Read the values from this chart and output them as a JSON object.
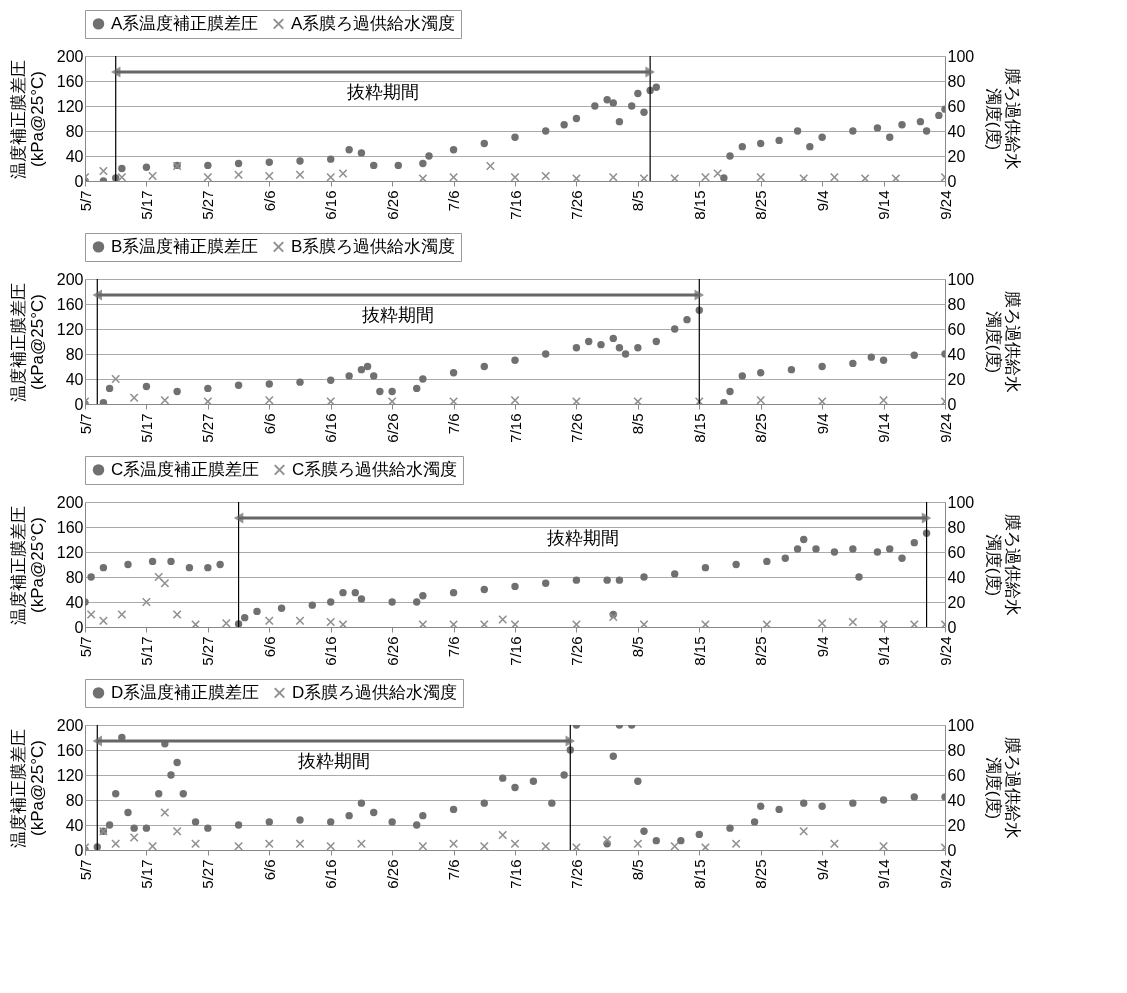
{
  "chart_data": [
    {
      "type": "scatter",
      "ylabel": "温度補正膜差圧\n(kPa@25°C)",
      "y2label": "膜ろ過供給水濁度(度)",
      "xlim": [
        "--05-07",
        "--09-24"
      ],
      "xticks": [
        {
          "value": "--05-07",
          "label": "5/7"
        },
        {
          "value": "--05-17",
          "label": "5/17"
        },
        {
          "value": "--05-27",
          "label": "5/27"
        },
        {
          "value": "--06-06",
          "label": "6/6"
        },
        {
          "value": "--06-16",
          "label": "6/16"
        },
        {
          "value": "--06-26",
          "label": "6/26"
        },
        {
          "value": "--07-06",
          "label": "7/6"
        },
        {
          "value": "--07-16",
          "label": "7/16"
        },
        {
          "value": "--07-26",
          "label": "7/26"
        },
        {
          "value": "--08-05",
          "label": "8/5"
        },
        {
          "value": "--08-15",
          "label": "8/15"
        },
        {
          "value": "--08-25",
          "label": "8/25"
        },
        {
          "value": "--09-04",
          "label": "9/4"
        },
        {
          "value": "--09-14",
          "label": "9/14"
        },
        {
          "value": "--09-24",
          "label": "9/24"
        }
      ],
      "ylim": [
        0,
        200
      ],
      "yticks": [
        0,
        40,
        80,
        120,
        160,
        200
      ],
      "y2lim": [
        0,
        100
      ],
      "y2ticks": [
        0,
        20,
        40,
        60,
        80,
        100
      ],
      "grid": "y",
      "legend": "top",
      "ref_lines": [
        {
          "axis": "x",
          "value": "--05-12",
          "color": "#000000"
        },
        {
          "axis": "x",
          "value": "--08-07",
          "color": "#000000"
        }
      ],
      "annotations": [
        "抜粋期間"
      ],
      "series": [
        {
          "name": "A系温度補正膜差圧",
          "color": "#707070",
          "marker": "circle",
          "x": [
            "--05-07",
            "--05-10",
            "--05-12",
            "--05-13",
            "--05-17",
            "--05-22",
            "--05-27",
            "--06-01",
            "--06-06",
            "--06-11",
            "--06-16",
            "--06-19",
            "--06-21",
            "--06-23",
            "--06-27",
            "--07-01",
            "--07-02",
            "--07-06",
            "--07-11",
            "--07-16",
            "--07-21",
            "--07-24",
            "--07-26",
            "--07-29",
            "--07-31",
            "--08-01",
            "--08-02",
            "--08-04",
            "--08-05",
            "--08-06",
            "--08-07",
            "--08-08",
            "--08-19",
            "--08-20",
            "--08-22",
            "--08-25",
            "--08-28",
            "--08-31",
            "--09-02",
            "--09-04",
            "--09-09",
            "--09-13",
            "--09-15",
            "--09-17",
            "--09-20",
            "--09-21",
            "--09-23",
            "--09-24"
          ],
          "values": [
            0,
            0,
            5,
            20,
            22,
            25,
            25,
            28,
            30,
            32,
            35,
            50,
            45,
            25,
            25,
            28,
            40,
            50,
            60,
            70,
            80,
            90,
            100,
            120,
            130,
            125,
            95,
            120,
            140,
            110,
            145,
            150,
            5,
            40,
            55,
            60,
            65,
            80,
            55,
            70,
            80,
            85,
            70,
            90,
            95,
            80,
            105,
            115
          ]
        },
        {
          "name": "A系膜ろ過供給水濁度",
          "color": "#909090",
          "marker": "cross",
          "axis": "y2",
          "x": [
            "--05-07",
            "--05-10",
            "--05-13",
            "--05-18",
            "--05-22",
            "--05-27",
            "--06-01",
            "--06-06",
            "--06-11",
            "--06-16",
            "--06-18",
            "--07-01",
            "--07-06",
            "--07-12",
            "--07-16",
            "--07-21",
            "--07-26",
            "--08-01",
            "--08-06",
            "--08-11",
            "--08-16",
            "--08-18",
            "--08-25",
            "--09-01",
            "--09-06",
            "--09-11",
            "--09-16",
            "--09-24"
          ],
          "values": [
            3,
            8,
            3,
            4,
            12,
            3,
            5,
            4,
            5,
            3,
            6,
            2,
            3,
            12,
            3,
            4,
            2,
            3,
            2,
            2,
            3,
            6,
            3,
            2,
            3,
            2,
            2,
            3
          ]
        }
      ]
    },
    {
      "type": "scatter",
      "ylabel": "温度補正膜差圧\n(kPa@25°C)",
      "y2label": "膜ろ過供給水濁度(度)",
      "xlim": [
        "--05-07",
        "--09-24"
      ],
      "xticks": [
        {
          "value": "--05-07",
          "label": "5/7"
        },
        {
          "value": "--05-17",
          "label": "5/17"
        },
        {
          "value": "--05-27",
          "label": "5/27"
        },
        {
          "value": "--06-06",
          "label": "6/6"
        },
        {
          "value": "--06-16",
          "label": "6/16"
        },
        {
          "value": "--06-26",
          "label": "6/26"
        },
        {
          "value": "--07-06",
          "label": "7/6"
        },
        {
          "value": "--07-16",
          "label": "7/16"
        },
        {
          "value": "--07-26",
          "label": "7/26"
        },
        {
          "value": "--08-05",
          "label": "8/5"
        },
        {
          "value": "--08-15",
          "label": "8/15"
        },
        {
          "value": "--08-25",
          "label": "8/25"
        },
        {
          "value": "--09-04",
          "label": "9/4"
        },
        {
          "value": "--09-14",
          "label": "9/14"
        },
        {
          "value": "--09-24",
          "label": "9/24"
        }
      ],
      "ylim": [
        0,
        200
      ],
      "yticks": [
        0,
        40,
        80,
        120,
        160,
        200
      ],
      "y2lim": [
        0,
        100
      ],
      "y2ticks": [
        0,
        20,
        40,
        60,
        80,
        100
      ],
      "grid": "y",
      "legend": "top",
      "ref_lines": [
        {
          "axis": "x",
          "value": "--05-09",
          "color": "#000000"
        },
        {
          "axis": "x",
          "value": "--08-15",
          "color": "#000000"
        }
      ],
      "annotations": [
        "抜粋期間"
      ],
      "series": [
        {
          "name": "B系温度補正膜差圧",
          "color": "#707070",
          "marker": "circle",
          "x": [
            "--05-07",
            "--05-10",
            "--05-11",
            "--05-17",
            "--05-22",
            "--05-27",
            "--06-01",
            "--06-06",
            "--06-11",
            "--06-16",
            "--06-19",
            "--06-21",
            "--06-22",
            "--06-23",
            "--06-24",
            "--06-26",
            "--06-30",
            "--07-01",
            "--07-06",
            "--07-11",
            "--07-16",
            "--07-21",
            "--07-26",
            "--07-28",
            "--07-30",
            "--08-01",
            "--08-02",
            "--08-03",
            "--08-05",
            "--08-08",
            "--08-11",
            "--08-13",
            "--08-15",
            "--08-19",
            "--08-20",
            "--08-22",
            "--08-25",
            "--08-30",
            "--09-04",
            "--09-09",
            "--09-12",
            "--09-14",
            "--09-19",
            "--09-24"
          ],
          "values": [
            0,
            2,
            25,
            28,
            20,
            25,
            30,
            32,
            35,
            38,
            45,
            55,
            60,
            45,
            20,
            20,
            25,
            40,
            50,
            60,
            70,
            80,
            90,
            100,
            95,
            105,
            90,
            80,
            90,
            100,
            120,
            135,
            150,
            2,
            20,
            45,
            50,
            55,
            60,
            65,
            75,
            70,
            78,
            80
          ]
        },
        {
          "name": "B系膜ろ過供給水濁度",
          "color": "#909090",
          "marker": "cross",
          "axis": "y2",
          "x": [
            "--05-07",
            "--05-12",
            "--05-15",
            "--05-20",
            "--05-27",
            "--06-06",
            "--06-16",
            "--06-26",
            "--07-06",
            "--07-16",
            "--07-26",
            "--08-05",
            "--08-15",
            "--08-25",
            "--09-04",
            "--09-14",
            "--09-24"
          ],
          "values": [
            2,
            20,
            5,
            3,
            2,
            3,
            2,
            2,
            2,
            3,
            2,
            2,
            2,
            3,
            2,
            3,
            2
          ]
        }
      ]
    },
    {
      "type": "scatter",
      "ylabel": "温度補正膜差圧\n(kPa@25°C)",
      "y2label": "膜ろ過供給水濁度(度)",
      "xlim": [
        "--05-07",
        "--09-24"
      ],
      "xticks": [
        {
          "value": "--05-07",
          "label": "5/7"
        },
        {
          "value": "--05-17",
          "label": "5/17"
        },
        {
          "value": "--05-27",
          "label": "5/27"
        },
        {
          "value": "--06-06",
          "label": "6/6"
        },
        {
          "value": "--06-16",
          "label": "6/16"
        },
        {
          "value": "--06-26",
          "label": "6/26"
        },
        {
          "value": "--07-06",
          "label": "7/6"
        },
        {
          "value": "--07-16",
          "label": "7/16"
        },
        {
          "value": "--07-26",
          "label": "7/26"
        },
        {
          "value": "--08-05",
          "label": "8/5"
        },
        {
          "value": "--08-15",
          "label": "8/15"
        },
        {
          "value": "--08-25",
          "label": "8/25"
        },
        {
          "value": "--09-04",
          "label": "9/4"
        },
        {
          "value": "--09-14",
          "label": "9/14"
        },
        {
          "value": "--09-24",
          "label": "9/24"
        }
      ],
      "ylim": [
        0,
        200
      ],
      "yticks": [
        0,
        40,
        80,
        120,
        160,
        200
      ],
      "y2lim": [
        0,
        100
      ],
      "y2ticks": [
        0,
        20,
        40,
        60,
        80,
        100
      ],
      "grid": "y",
      "legend": "top",
      "ref_lines": [
        {
          "axis": "x",
          "value": "--06-01",
          "color": "#000000"
        },
        {
          "axis": "x",
          "value": "--09-21",
          "color": "#000000"
        }
      ],
      "annotations": [
        "抜粋期間"
      ],
      "series": [
        {
          "name": "C系温度補正膜差圧",
          "color": "#707070",
          "marker": "circle",
          "x": [
            "--05-07",
            "--05-08",
            "--05-10",
            "--05-14",
            "--05-18",
            "--05-21",
            "--05-24",
            "--05-27",
            "--05-29",
            "--06-01",
            "--06-02",
            "--06-04",
            "--06-08",
            "--06-13",
            "--06-16",
            "--06-18",
            "--06-20",
            "--06-21",
            "--06-26",
            "--06-30",
            "--07-01",
            "--07-06",
            "--07-11",
            "--07-16",
            "--07-21",
            "--07-26",
            "--07-31",
            "--08-01",
            "--08-02",
            "--08-06",
            "--08-11",
            "--08-16",
            "--08-21",
            "--08-26",
            "--08-29",
            "--08-31",
            "--09-01",
            "--09-03",
            "--09-06",
            "--09-09",
            "--09-10",
            "--09-13",
            "--09-15",
            "--09-17",
            "--09-19",
            "--09-21"
          ],
          "values": [
            40,
            80,
            95,
            100,
            105,
            105,
            95,
            95,
            100,
            5,
            15,
            25,
            30,
            35,
            40,
            55,
            55,
            45,
            40,
            40,
            50,
            55,
            60,
            65,
            70,
            75,
            75,
            20,
            75,
            80,
            85,
            95,
            100,
            105,
            110,
            125,
            140,
            125,
            120,
            125,
            80,
            120,
            125,
            110,
            135,
            150
          ]
        },
        {
          "name": "C系膜ろ過供給水濁度",
          "color": "#909090",
          "marker": "cross",
          "axis": "y2",
          "x": [
            "--05-08",
            "--05-10",
            "--05-13",
            "--05-17",
            "--05-19",
            "--05-20",
            "--05-22",
            "--05-25",
            "--05-30",
            "--06-06",
            "--06-11",
            "--06-16",
            "--06-18",
            "--07-01",
            "--07-06",
            "--07-11",
            "--07-14",
            "--07-16",
            "--07-26",
            "--08-01",
            "--08-06",
            "--08-16",
            "--08-26",
            "--09-04",
            "--09-09",
            "--09-14",
            "--09-19",
            "--09-24"
          ],
          "values": [
            10,
            5,
            10,
            20,
            40,
            35,
            10,
            2,
            3,
            5,
            5,
            4,
            2,
            2,
            2,
            2,
            6,
            2,
            2,
            8,
            2,
            2,
            2,
            3,
            4,
            2,
            2,
            2
          ]
        }
      ]
    },
    {
      "type": "scatter",
      "ylabel": "温度補正膜差圧\n(kPa@25°C)",
      "y2label": "膜ろ過供給水濁度(度)",
      "xlim": [
        "--05-07",
        "--09-24"
      ],
      "xticks": [
        {
          "value": "--05-07",
          "label": "5/7"
        },
        {
          "value": "--05-17",
          "label": "5/17"
        },
        {
          "value": "--05-27",
          "label": "5/27"
        },
        {
          "value": "--06-06",
          "label": "6/6"
        },
        {
          "value": "--06-16",
          "label": "6/16"
        },
        {
          "value": "--06-26",
          "label": "6/26"
        },
        {
          "value": "--07-06",
          "label": "7/6"
        },
        {
          "value": "--07-16",
          "label": "7/16"
        },
        {
          "value": "--07-26",
          "label": "7/26"
        },
        {
          "value": "--08-05",
          "label": "8/5"
        },
        {
          "value": "--08-15",
          "label": "8/15"
        },
        {
          "value": "--08-25",
          "label": "8/25"
        },
        {
          "value": "--09-04",
          "label": "9/4"
        },
        {
          "value": "--09-14",
          "label": "9/14"
        },
        {
          "value": "--09-24",
          "label": "9/24"
        }
      ],
      "ylim": [
        0,
        200
      ],
      "yticks": [
        0,
        40,
        80,
        120,
        160,
        200
      ],
      "y2lim": [
        0,
        100
      ],
      "y2ticks": [
        0,
        20,
        40,
        60,
        80,
        100
      ],
      "grid": "y",
      "legend": "top",
      "ref_lines": [
        {
          "axis": "x",
          "value": "--05-09",
          "color": "#000000"
        },
        {
          "axis": "x",
          "value": "--07-25",
          "color": "#000000"
        }
      ],
      "annotations": [
        "抜粋期間"
      ],
      "series": [
        {
          "name": "D系温度補正膜差圧",
          "color": "#707070",
          "marker": "circle",
          "x": [
            "--05-07",
            "--05-09",
            "--05-10",
            "--05-11",
            "--05-12",
            "--05-13",
            "--05-14",
            "--05-15",
            "--05-17",
            "--05-19",
            "--05-20",
            "--05-21",
            "--05-22",
            "--05-23",
            "--05-25",
            "--05-27",
            "--06-01",
            "--06-06",
            "--06-11",
            "--06-16",
            "--06-19",
            "--06-21",
            "--06-23",
            "--06-26",
            "--06-30",
            "--07-01",
            "--07-06",
            "--07-11",
            "--07-14",
            "--07-16",
            "--07-19",
            "--07-22",
            "--07-24",
            "--07-25",
            "--07-26",
            "--07-31",
            "--08-01",
            "--08-02",
            "--08-04",
            "--08-05",
            "--08-06",
            "--08-08",
            "--08-12",
            "--08-15",
            "--08-20",
            "--08-24",
            "--08-25",
            "--08-28",
            "--09-01",
            "--09-04",
            "--09-09",
            "--09-14",
            "--09-19",
            "--09-24"
          ],
          "values": [
            0,
            5,
            30,
            40,
            90,
            180,
            60,
            35,
            35,
            90,
            170,
            120,
            140,
            90,
            45,
            35,
            40,
            45,
            48,
            45,
            55,
            75,
            60,
            45,
            40,
            55,
            65,
            75,
            115,
            100,
            110,
            75,
            120,
            160,
            200,
            10,
            150,
            200,
            200,
            110,
            30,
            15,
            15,
            25,
            35,
            45,
            70,
            65,
            75,
            70,
            75,
            80,
            85,
            85
          ]
        },
        {
          "name": "D系膜ろ過供給水濁度",
          "color": "#909090",
          "marker": "cross",
          "axis": "y2",
          "x": [
            "--05-07",
            "--05-10",
            "--05-12",
            "--05-15",
            "--05-18",
            "--05-20",
            "--05-22",
            "--05-25",
            "--06-01",
            "--06-06",
            "--06-11",
            "--06-16",
            "--06-21",
            "--07-01",
            "--07-06",
            "--07-11",
            "--07-14",
            "--07-16",
            "--07-21",
            "--07-26",
            "--07-31",
            "--08-05",
            "--08-11",
            "--08-16",
            "--08-21",
            "--09-01",
            "--09-06",
            "--09-14",
            "--09-24"
          ],
          "values": [
            2,
            15,
            5,
            10,
            3,
            30,
            15,
            5,
            3,
            5,
            5,
            3,
            5,
            3,
            5,
            3,
            12,
            5,
            3,
            2,
            8,
            5,
            3,
            2,
            5,
            15,
            5,
            3,
            2
          ]
        }
      ]
    }
  ]
}
